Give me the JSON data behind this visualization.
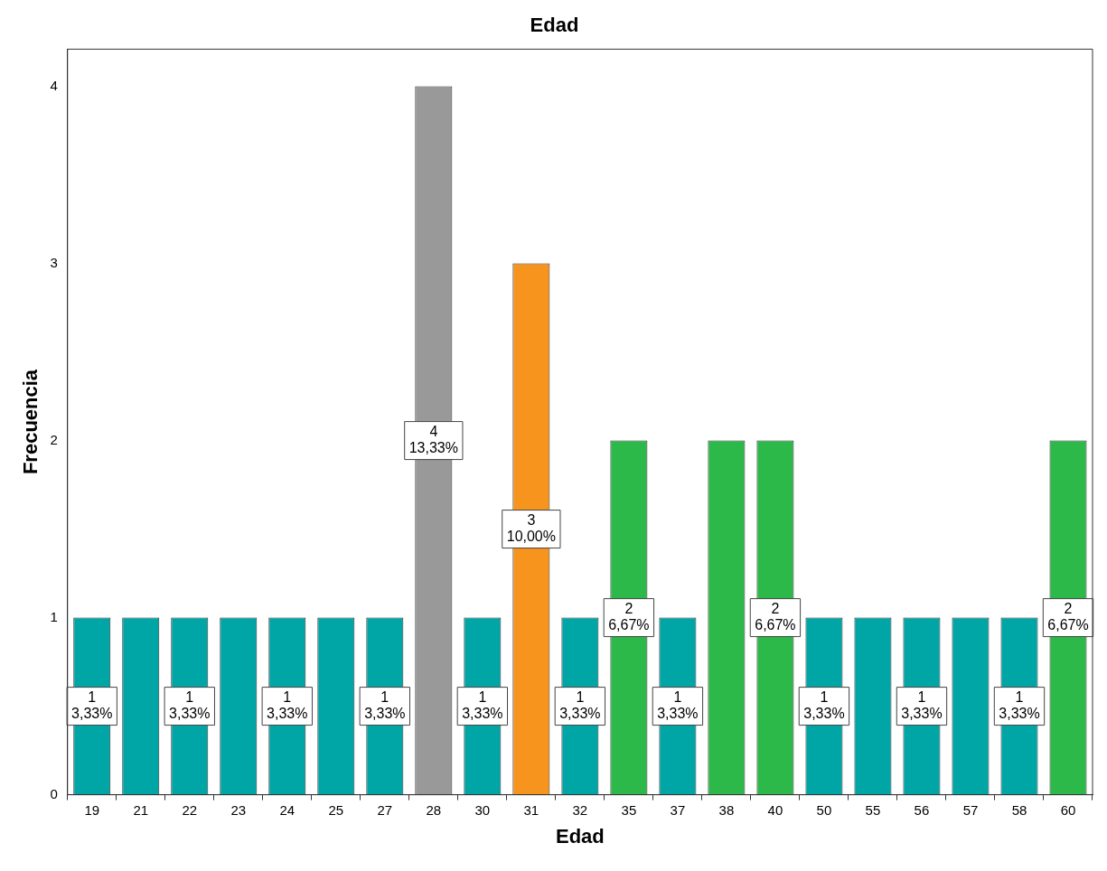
{
  "chart_data": {
    "type": "bar",
    "title": "Edad",
    "xlabel": "Edad",
    "ylabel": "Frecuencia",
    "categories": [
      "19",
      "21",
      "22",
      "23",
      "24",
      "25",
      "27",
      "28",
      "30",
      "31",
      "32",
      "35",
      "37",
      "38",
      "40",
      "50",
      "55",
      "56",
      "57",
      "58",
      "60"
    ],
    "values": [
      1,
      1,
      1,
      1,
      1,
      1,
      1,
      4,
      1,
      3,
      1,
      2,
      1,
      2,
      2,
      1,
      1,
      1,
      1,
      1,
      2
    ],
    "colors": [
      "#00a5a5",
      "#00a5a5",
      "#00a5a5",
      "#00a5a5",
      "#00a5a5",
      "#00a5a5",
      "#00a5a5",
      "#999999",
      "#00a5a5",
      "#f7941d",
      "#00a5a5",
      "#2db84a",
      "#00a5a5",
      "#2db84a",
      "#2db84a",
      "#00a5a5",
      "#00a5a5",
      "#00a5a5",
      "#00a5a5",
      "#00a5a5",
      "#2db84a"
    ],
    "value_labels": [
      "1\n3,33%",
      null,
      "1\n3,33%",
      null,
      "1\n3,33%",
      null,
      "1\n3,33%",
      "4\n13,33%",
      "1\n3,33%",
      "3\n10,00%",
      "1\n3,33%",
      "2\n6,67%",
      "1\n3,33%",
      null,
      "2\n6,67%",
      "1\n3,33%",
      null,
      "1\n3,33%",
      null,
      "1\n3,33%",
      "2\n6,67%"
    ],
    "ylim": [
      0,
      4.21
    ],
    "yticks": [
      0,
      1,
      2,
      3,
      4
    ],
    "grid": false,
    "legend": false
  }
}
